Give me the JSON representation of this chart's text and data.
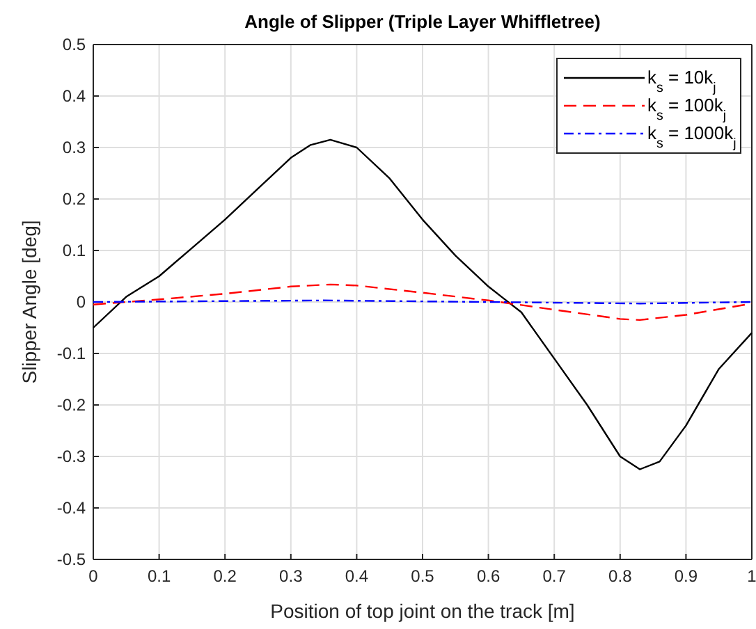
{
  "chart_data": {
    "type": "line",
    "title": "Angle of Slipper (Triple Layer Whiffletree)",
    "xlabel": "Position of top joint on the track [m]",
    "ylabel": "Slipper Angle [deg]",
    "xlim": [
      0,
      1
    ],
    "xticks": [
      0,
      0.1,
      0.2,
      0.3,
      0.4,
      0.5,
      0.6,
      0.7,
      0.8,
      0.9,
      1
    ],
    "ylim": [
      -0.5,
      0.5
    ],
    "yticks": [
      -0.5,
      -0.4,
      -0.3,
      -0.2,
      -0.1,
      0,
      0.1,
      0.2,
      0.3,
      0.4,
      0.5
    ],
    "grid": true,
    "legend": "top right",
    "series": [
      {
        "name": "k$_{s}$ = 10k$_{j}$",
        "color": "#000000",
        "line_style": "solid",
        "x": [
          0,
          0.05,
          0.1,
          0.15,
          0.2,
          0.25,
          0.3,
          0.33,
          0.36,
          0.4,
          0.45,
          0.5,
          0.55,
          0.6,
          0.62,
          0.65,
          0.7,
          0.75,
          0.8,
          0.83,
          0.86,
          0.9,
          0.95,
          1
        ],
        "values": [
          -0.05,
          0.01,
          0.05,
          0.105,
          0.16,
          0.22,
          0.28,
          0.305,
          0.315,
          0.3,
          0.24,
          0.16,
          0.09,
          0.03,
          0.01,
          -0.02,
          -0.11,
          -0.2,
          -0.3,
          -0.325,
          -0.31,
          -0.24,
          -0.13,
          -0.06
        ]
      },
      {
        "name": "k$_{s}$ = 100k$_{j}$",
        "color": "#ff0000",
        "line_style": "dashed",
        "x": [
          0,
          0.1,
          0.2,
          0.3,
          0.36,
          0.4,
          0.5,
          0.6,
          0.7,
          0.8,
          0.83,
          0.9,
          1
        ],
        "values": [
          -0.005,
          0.005,
          0.016,
          0.03,
          0.034,
          0.032,
          0.018,
          0.003,
          -0.015,
          -0.033,
          -0.035,
          -0.025,
          -0.003
        ]
      },
      {
        "name": "k$_{s}$ = 1000k$_{j}$",
        "color": "#0000ff",
        "line_style": "dashdot",
        "x": [
          0,
          0.35,
          0.6,
          0.83,
          1
        ],
        "values": [
          0,
          0.003,
          0,
          -0.003,
          0
        ]
      }
    ]
  }
}
